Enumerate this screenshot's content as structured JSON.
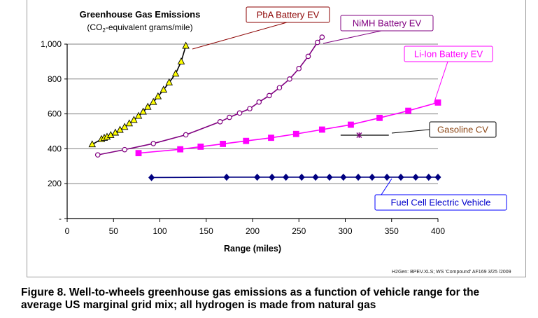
{
  "chart_data": {
    "type": "line",
    "title": "Greenhouse Gas Emissions",
    "subtitle": "(CO",
    "subtitle_sub": "2",
    "subtitle_rest": "-equivalent grams/mile)",
    "xlabel": "Range (miles)",
    "ylabel": "",
    "xlim": [
      0,
      400
    ],
    "ylim": [
      0,
      1000
    ],
    "x_ticks": [
      "0",
      "50",
      "100",
      "150",
      "200",
      "250",
      "300",
      "350",
      "400"
    ],
    "y_ticks": [
      "-",
      "200",
      "400",
      "600",
      "800",
      "1,000"
    ],
    "grid": "horizontal",
    "series": [
      {
        "name": "PbA Battery EV",
        "color": "#000000",
        "marker": "triangle",
        "marker_fill": "#ffff00",
        "x": [
          27,
          37,
          40,
          43,
          47,
          52,
          57,
          62,
          67,
          72,
          77,
          82,
          87,
          93,
          98,
          104,
          110,
          117,
          123,
          128
        ],
        "y": [
          425,
          455,
          462,
          468,
          478,
          492,
          508,
          525,
          545,
          565,
          588,
          612,
          640,
          668,
          700,
          738,
          780,
          830,
          900,
          990
        ]
      },
      {
        "name": "NiMH Battery EV",
        "color": "#800080",
        "marker": "circle",
        "marker_fill": "#ffffff",
        "x": [
          33,
          62,
          93,
          128,
          165,
          175,
          186,
          197,
          207,
          218,
          229,
          240,
          250,
          260,
          270,
          275
        ],
        "y": [
          365,
          395,
          430,
          480,
          555,
          580,
          605,
          630,
          668,
          705,
          750,
          800,
          860,
          930,
          1010,
          1040
        ]
      },
      {
        "name": "Li-Ion Battery EV",
        "color": "#ff00ff",
        "marker": "square",
        "marker_fill": "#ff00ff",
        "x": [
          77,
          122,
          144,
          168,
          193,
          220,
          247,
          275,
          306,
          337,
          368,
          400
        ],
        "y": [
          375,
          397,
          412,
          428,
          445,
          463,
          485,
          510,
          538,
          577,
          618,
          665
        ]
      },
      {
        "name": "Gasoline CV",
        "color": "#8b0000",
        "marker": "star",
        "marker_fill": "#800080",
        "x": [
          315
        ],
        "y": [
          478
        ]
      },
      {
        "name": "Fuel Cell  Electric Vehicle",
        "color": "#000080",
        "marker": "diamond",
        "marker_fill": "#000080",
        "x": [
          91,
          172,
          205,
          221,
          236,
          253,
          268,
          283,
          298,
          314,
          329,
          345,
          360,
          376,
          390,
          400
        ],
        "y": [
          235,
          237,
          237,
          237,
          237,
          237,
          237,
          237,
          237,
          237,
          237,
          237,
          237,
          237,
          237,
          237
        ]
      }
    ],
    "gasoline_line_x": [
      295,
      347
    ],
    "gasoline_line_y": [
      478,
      478
    ],
    "colors": {
      "pba_label_border": "#8b0000",
      "pba_label_text": "#8b0000",
      "nimh_label_border": "#800080",
      "nimh_label_text": "#800080",
      "liion_label_border": "#ff00ff",
      "liion_label_text": "#ff00ff",
      "gas_label_border": "#000000",
      "gas_label_text": "#8b4513",
      "fc_label_border": "#0000ff",
      "fc_label_text": "#0000cc"
    }
  },
  "footnote": "H2Gen: BPEV.XLS; WS 'Compound' AF169 3/25 /2009",
  "caption_line1": "Figure 8. Well-to-wheels greenhouse gas emissions as a function of vehicle range for the",
  "caption_line2": "average US marginal grid mix; all hydrogen is made from natural gas"
}
